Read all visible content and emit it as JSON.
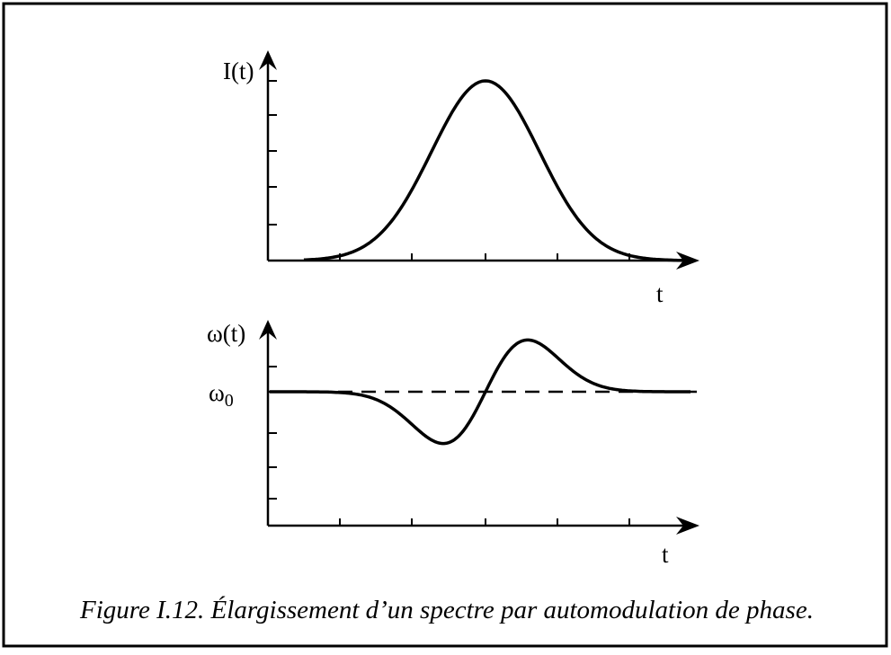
{
  "figure": {
    "top_plot": {
      "y_label": "I(t)",
      "x_label": "t"
    },
    "bottom_plot": {
      "y_label": "ω(t)",
      "baseline_label": {
        "symbol": "ω",
        "subscript": "0"
      },
      "x_label": "t"
    },
    "caption": "Figure I.12. Élargissement d’un spectre par automodulation de phase."
  }
}
